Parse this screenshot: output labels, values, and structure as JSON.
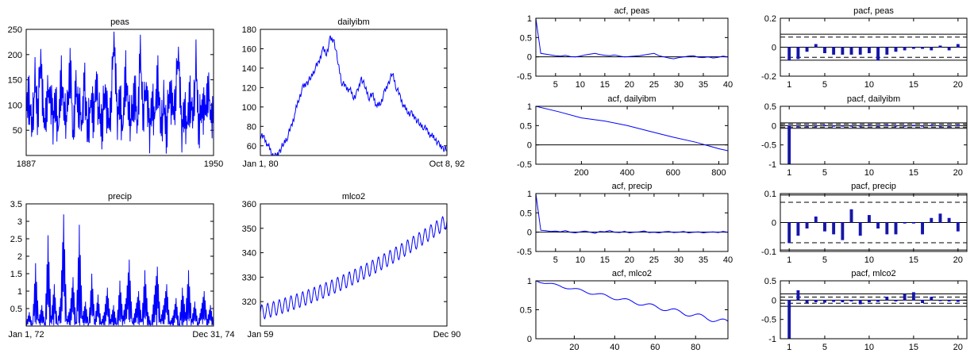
{
  "chart_data": [
    {
      "type": "line",
      "title": "peas",
      "xtick_labels": [
        "1887",
        "1950"
      ],
      "ylim": [
        0,
        250
      ],
      "yticks": [
        50,
        100,
        150,
        200,
        250
      ],
      "series": [
        {
          "values": [
            95,
            120,
            60,
            140,
            80,
            200,
            45,
            100,
            130,
            70,
            110,
            55,
            160,
            90,
            75,
            180,
            40,
            120,
            95,
            65,
            140,
            50,
            110,
            85,
            150,
            70,
            60,
            130,
            45,
            100,
            240,
            80,
            115,
            55,
            170,
            90,
            65,
            125,
            60,
            190,
            75,
            140,
            50,
            105,
            85,
            160,
            60,
            95,
            45,
            135,
            75,
            110,
            210,
            55,
            90,
            65,
            120,
            80,
            175,
            50,
            100,
            70,
            130,
            85,
            60
          ]
        }
      ],
      "color": "#0000ff"
    },
    {
      "type": "line",
      "title": "dailyibm",
      "xtick_labels": [
        "Jan 1, 80",
        "Oct 8, 92"
      ],
      "ylim": [
        50,
        180
      ],
      "yticks": [
        60,
        80,
        100,
        120,
        140,
        160,
        180
      ],
      "series": [
        {
          "values": [
            70,
            68,
            60,
            52,
            48,
            55,
            62,
            70,
            80,
            95,
            110,
            120,
            125,
            130,
            140,
            145,
            160,
            155,
            170,
            168,
            145,
            125,
            120,
            118,
            110,
            115,
            130,
            120,
            110,
            112,
            100,
            105,
            115,
            125,
            135,
            120,
            110,
            100,
            95,
            92,
            88,
            82,
            80,
            75,
            70,
            68,
            60,
            58,
            55
          ]
        }
      ],
      "color": "#0000ff"
    },
    {
      "type": "line",
      "title": "precip",
      "xtick_labels": [
        "Jan 1, 72",
        "Dec 31, 74"
      ],
      "ylim": [
        0,
        3.5
      ],
      "yticks": [
        0.5,
        1,
        1.5,
        2,
        2.5,
        3,
        3.5
      ],
      "series": [
        {
          "values": [
            0.1,
            0.4,
            0.05,
            1.8,
            0.2,
            0.6,
            0.1,
            2.6,
            0.3,
            1.2,
            0.05,
            0.8,
            3.2,
            0.2,
            0.5,
            1.4,
            0.1,
            2.9,
            0.3,
            0.7,
            0.05,
            1.5,
            0.2,
            0.9,
            0.1,
            0.4,
            1.1,
            0.2,
            0.6,
            0.05,
            1.3,
            0.3,
            0.8,
            1.9,
            0.1,
            0.5,
            1.0,
            0.2,
            1.6,
            0.4,
            0.05,
            0.9,
            1.7,
            0.2,
            0.6,
            1.2,
            0.1,
            0.3,
            0.8,
            0.05,
            1.1,
            0.4,
            1.6,
            0.2,
            0.7,
            0.1,
            0.5,
            1.0,
            0.2,
            0.6,
            0.1
          ]
        }
      ],
      "color": "#0000ff"
    },
    {
      "type": "line",
      "title": "mlco2",
      "xtick_labels": [
        "Jan 59",
        "Dec 90"
      ],
      "ylim": [
        310,
        360
      ],
      "yticks": [
        320,
        330,
        340,
        350,
        360
      ],
      "trend": {
        "start": 315.5,
        "end": 353.0,
        "cycles": 32,
        "amplitude": 3.0
      },
      "color": "#0000ff"
    },
    {
      "type": "line",
      "title": "acf, peas",
      "xlim": [
        1,
        40
      ],
      "ylim": [
        -0.5,
        1
      ],
      "xticks": [
        5,
        10,
        15,
        20,
        25,
        30,
        35,
        40
      ],
      "yticks": [
        -0.5,
        0,
        0.5,
        1
      ],
      "series": [
        {
          "values": [
            1,
            0.09,
            0.07,
            0.05,
            0.03,
            0.02,
            0.04,
            0.01,
            0.0,
            0.02,
            0.05,
            0.07,
            0.09,
            0.06,
            0.04,
            0.03,
            0.05,
            0.02,
            0.0,
            0.01,
            0.02,
            0.03,
            0.05,
            0.07,
            0.09,
            0.03,
            0.0,
            -0.03,
            -0.05,
            -0.02,
            0.0,
            0.02,
            0.03,
            -0.01,
            -0.02,
            0.0,
            -0.03,
            -0.01,
            0.02,
            0.0
          ]
        }
      ],
      "conf_band": [
        0.06,
        -0.06
      ],
      "color": "#0000ff"
    },
    {
      "type": "bar",
      "title": "pacf, peas",
      "xlim": [
        0,
        21
      ],
      "ylim": [
        -0.2,
        0.2
      ],
      "xticks": [
        1,
        5,
        10,
        15,
        20
      ],
      "yticks": [
        -0.2,
        0,
        0.2
      ],
      "values": [
        -0.09,
        -0.08,
        -0.03,
        0.02,
        -0.04,
        -0.05,
        -0.05,
        -0.05,
        -0.05,
        -0.04,
        -0.09,
        -0.05,
        -0.03,
        -0.02,
        -0.01,
        -0.01,
        -0.02,
        0.01,
        -0.02,
        0.02
      ],
      "conf_levels": [
        0.09,
        0.07,
        -0.07,
        -0.09
      ],
      "color": "#0000ff"
    },
    {
      "type": "line",
      "title": "acf, dailyibm",
      "xlim": [
        1,
        840
      ],
      "ylim": [
        -0.5,
        1
      ],
      "xticks": [
        200,
        400,
        600,
        800
      ],
      "yticks": [
        -0.5,
        0,
        0.5,
        1
      ],
      "series": [
        {
          "x": [
            1,
            100,
            200,
            300,
            400,
            500,
            600,
            700,
            800,
            840
          ],
          "values": [
            1,
            0.86,
            0.7,
            0.62,
            0.5,
            0.35,
            0.2,
            0.07,
            -0.1,
            -0.15
          ]
        }
      ],
      "color": "#0000ff"
    },
    {
      "type": "bar",
      "title": "pacf, dailyibm",
      "xlim": [
        0,
        21
      ],
      "ylim": [
        -1,
        0.5
      ],
      "xticks": [
        1,
        5,
        10,
        15,
        20
      ],
      "yticks": [
        -1,
        -0.5,
        0,
        0.5
      ],
      "values": [
        -1,
        -0.02,
        -0.01,
        -0.02,
        0.01,
        -0.01,
        -0.02,
        0.0,
        -0.01,
        0.01,
        -0.02,
        0.01,
        0.0,
        -0.01,
        0.01,
        -0.02,
        0.01,
        0.0,
        -0.01,
        0.01
      ],
      "conf_levels": [
        0.07,
        0.04,
        -0.04,
        -0.07
      ],
      "color": "#0000ff"
    },
    {
      "type": "line",
      "title": "acf, precip",
      "xlim": [
        1,
        40
      ],
      "ylim": [
        -0.5,
        1
      ],
      "xticks": [
        5,
        10,
        15,
        20,
        25,
        30,
        35,
        40
      ],
      "yticks": [
        -0.5,
        0,
        0.5,
        1
      ],
      "series": [
        {
          "values": [
            1,
            0.05,
            0.04,
            0.02,
            0.03,
            0.01,
            0.04,
            0.0,
            -0.02,
            0.01,
            0.03,
            0.0,
            -0.03,
            0.02,
            0.01,
            0.04,
            0.0,
            -0.01,
            0.02,
            -0.02,
            0.0,
            0.01,
            0.03,
            -0.01,
            0.0,
            -0.02,
            0.01,
            0.02,
            -0.01,
            0.0,
            0.02,
            -0.02,
            0.0,
            0.01,
            -0.02,
            0.0,
            0.01,
            -0.01,
            0.02,
            0.0
          ]
        }
      ],
      "conf_band": [
        0.05,
        -0.05
      ],
      "color": "#0000ff"
    },
    {
      "type": "bar",
      "title": "pacf, precip",
      "xlim": [
        0,
        21
      ],
      "ylim": [
        -0.1,
        0.1
      ],
      "xticks": [
        1,
        5,
        10,
        15,
        20
      ],
      "yticks": [
        -0.1,
        0,
        0.1
      ],
      "values": [
        -0.07,
        -0.045,
        -0.02,
        0.02,
        -0.03,
        -0.04,
        -0.06,
        0.045,
        -0.045,
        0.025,
        -0.02,
        -0.04,
        -0.04,
        0.0,
        0.0,
        -0.04,
        0.015,
        0.03,
        0.015,
        -0.03
      ],
      "conf_levels": [
        0.095,
        0.07,
        -0.07,
        -0.095
      ],
      "color": "#0000ff"
    },
    {
      "type": "line",
      "title": "acf, mlco2",
      "xlim": [
        1,
        96
      ],
      "ylim": [
        0,
        1
      ],
      "xticks": [
        20,
        40,
        60,
        80
      ],
      "yticks": [
        0,
        0.5,
        1
      ],
      "decay": {
        "start": 1.0,
        "end": 0.28,
        "cycle": 12,
        "amplitude": 0.03
      },
      "color": "#0000ff"
    },
    {
      "type": "bar",
      "title": "pacf, mlco2",
      "xlim": [
        0,
        21
      ],
      "ylim": [
        -1,
        0.5
      ],
      "xticks": [
        1,
        5,
        10,
        15,
        20
      ],
      "yticks": [
        -1,
        -0.5,
        0,
        0.5
      ],
      "values": [
        -1,
        0.25,
        -0.07,
        -0.05,
        -0.06,
        -0.04,
        -0.05,
        -0.03,
        -0.1,
        -0.05,
        -0.04,
        0.08,
        -0.03,
        0.15,
        0.2,
        -0.07,
        0.08,
        0.0,
        -0.03,
        -0.04
      ],
      "conf_levels": [
        0.16,
        0.08,
        -0.08,
        -0.16
      ],
      "color": "#0000ff"
    }
  ]
}
